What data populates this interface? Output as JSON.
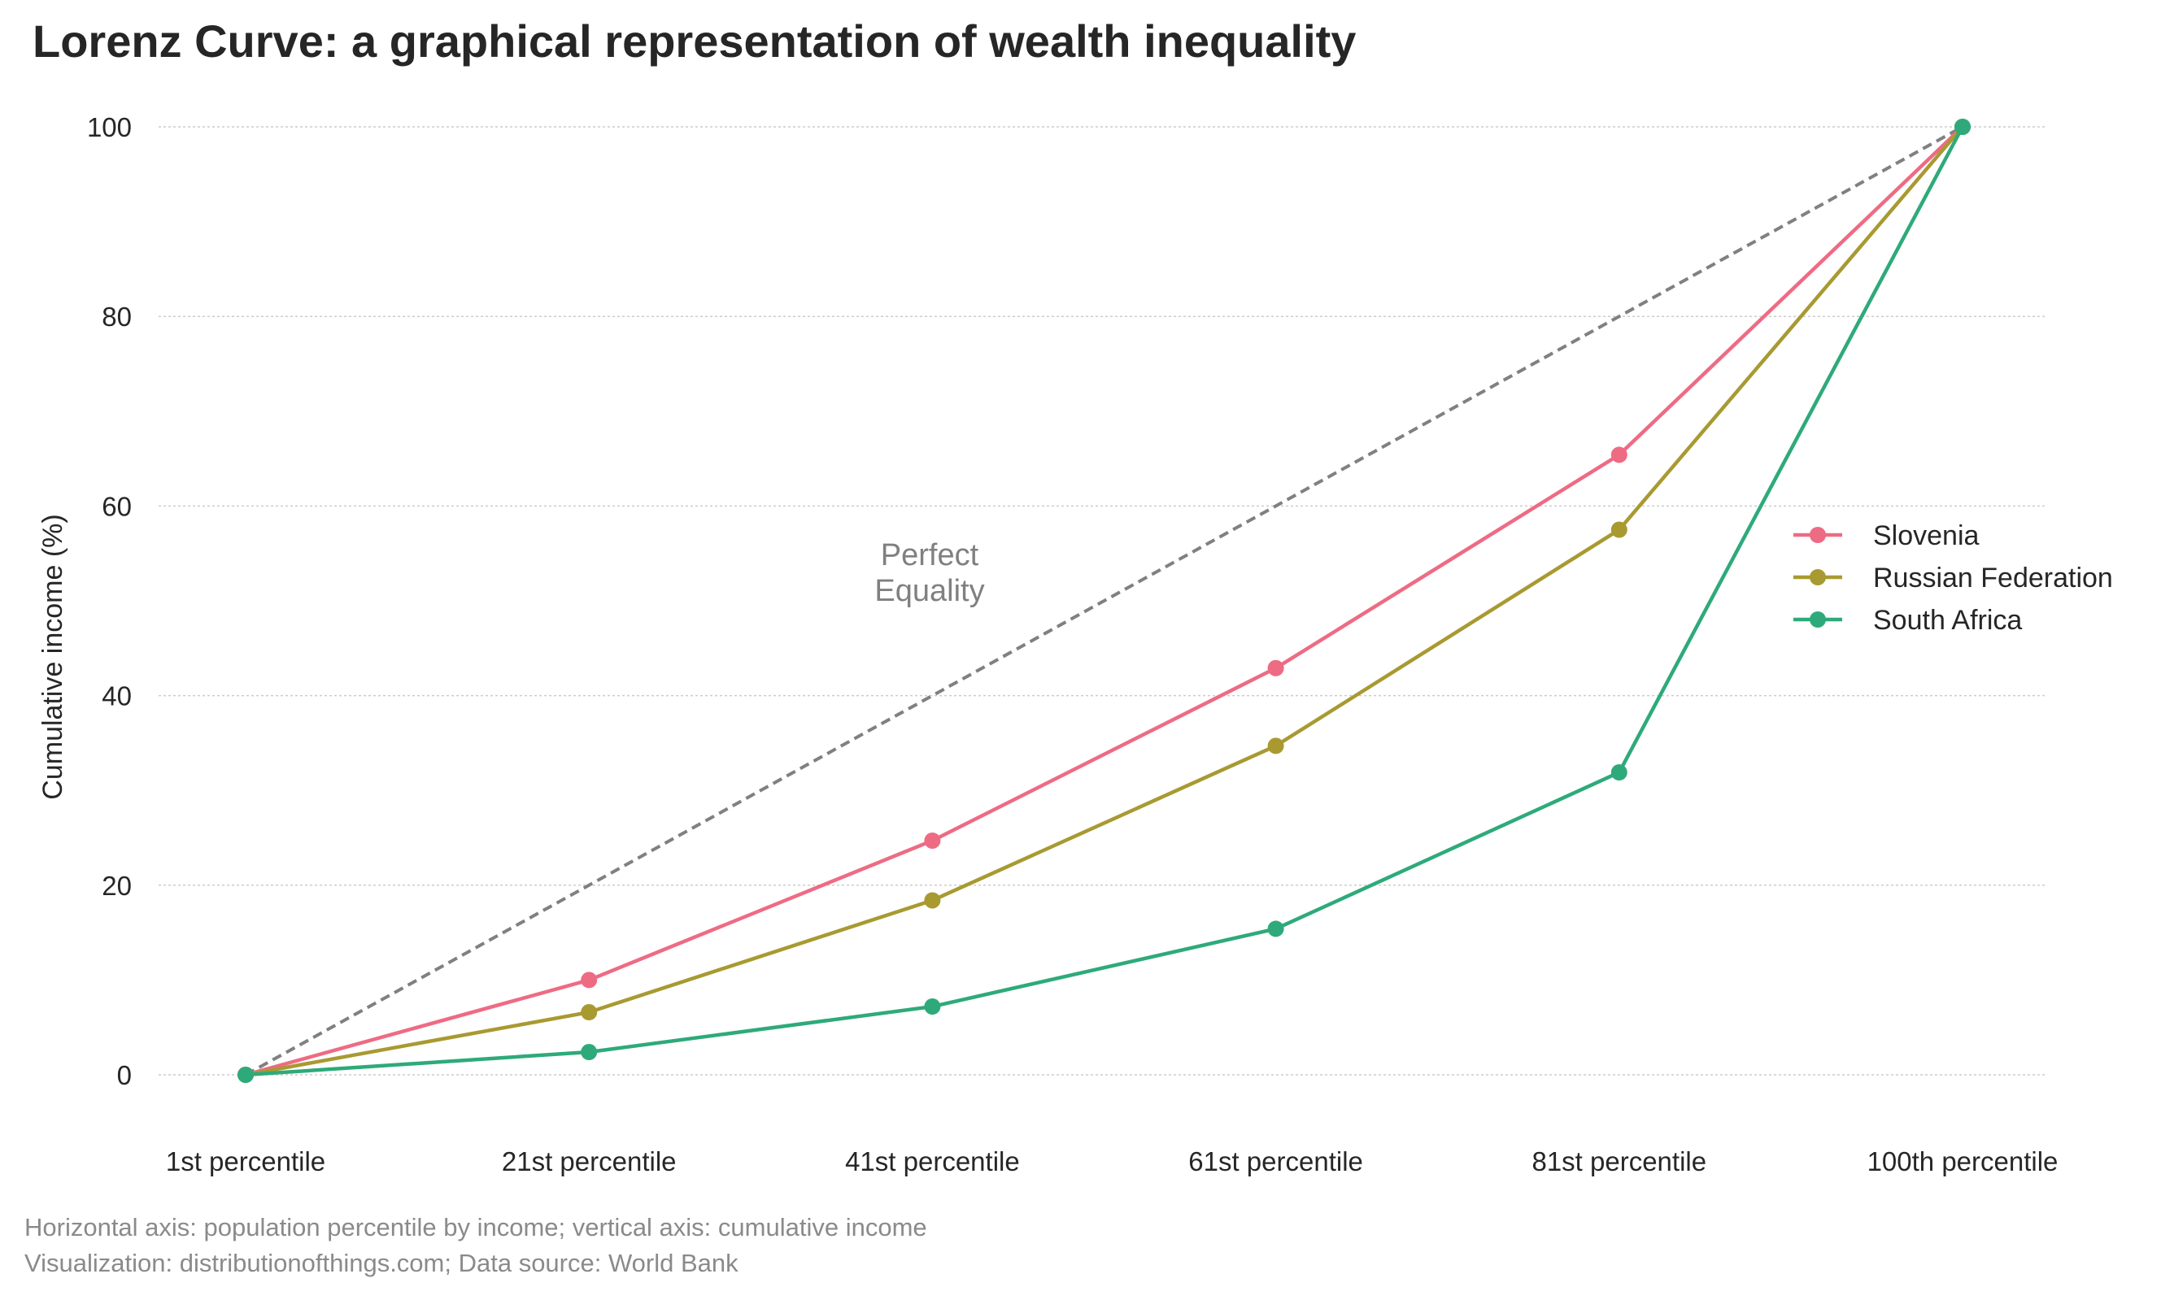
{
  "title": "Lorenz Curve: a graphical representation of wealth inequality",
  "footer": {
    "line1": "Horizontal axis: population percentile by income; vertical axis: cumulative income",
    "line2": "Visualization: distributionofthings.com; Data source: World Bank"
  },
  "chart_data": {
    "type": "line",
    "title": "Lorenz Curve: a graphical representation of wealth inequality",
    "xlabel": "",
    "ylabel": "Cumulative income (%)",
    "categories": [
      "1st percentile",
      "21st percentile",
      "41st percentile",
      "61st percentile",
      "81st percentile",
      "100th percentile"
    ],
    "ylim": [
      -7,
      102
    ],
    "yticks": [
      0,
      20,
      40,
      60,
      80,
      100
    ],
    "grid": "horizontal dotted",
    "legend_position": "right",
    "equality_line": {
      "label": [
        "Perfect",
        "Equality"
      ],
      "values": [
        0,
        20,
        40,
        60,
        80,
        100
      ],
      "color": "#808080"
    },
    "series": [
      {
        "name": "Slovenia",
        "color": "#ee6b84",
        "values": [
          0,
          10,
          24.7,
          42.9,
          65.4,
          100
        ]
      },
      {
        "name": "Russian Federation",
        "color": "#a89a31",
        "values": [
          0,
          6.6,
          18.4,
          34.7,
          57.5,
          100
        ]
      },
      {
        "name": "South Africa",
        "color": "#2eaa7a",
        "values": [
          0,
          2.4,
          7.2,
          15.4,
          31.9,
          100
        ]
      }
    ]
  }
}
